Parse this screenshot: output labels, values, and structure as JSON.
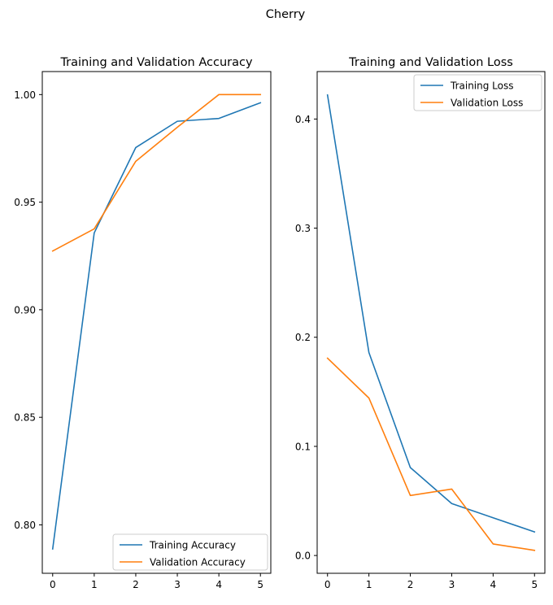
{
  "figure": {
    "suptitle": "Cherry"
  },
  "colors": {
    "training": "#1f77b4",
    "validation": "#ff7f0e",
    "axes": "#000000",
    "background": "#ffffff"
  },
  "chart_data": [
    {
      "type": "line",
      "title": "Training and Validation Accuracy",
      "xlabel": "",
      "ylabel": "",
      "x": [
        0,
        1,
        2,
        3,
        4,
        5
      ],
      "xticks": [
        "0",
        "1",
        "2",
        "3",
        "4",
        "5"
      ],
      "xlim": [
        -0.25,
        5.25
      ],
      "yticks": [
        "0.80",
        "0.85",
        "0.90",
        "0.95",
        "1.00"
      ],
      "ylim": [
        0.7775,
        1.0107
      ],
      "grid": false,
      "legend_position": "lower right",
      "series": [
        {
          "name": "Training Accuracy",
          "color": "#1f77b4",
          "values": [
            0.7888,
            0.9357,
            0.9754,
            0.9876,
            0.9889,
            0.9962
          ]
        },
        {
          "name": "Validation Accuracy",
          "color": "#ff7f0e",
          "values": [
            0.9273,
            0.9376,
            0.969,
            0.9848,
            1.0,
            1.0
          ]
        }
      ]
    },
    {
      "type": "line",
      "title": "Training and Validation Loss",
      "xlabel": "",
      "ylabel": "",
      "x": [
        0,
        1,
        2,
        3,
        4,
        5
      ],
      "xticks": [
        "0",
        "1",
        "2",
        "3",
        "4",
        "5"
      ],
      "xlim": [
        -0.25,
        5.25
      ],
      "yticks": [
        "0.0",
        "0.1",
        "0.2",
        "0.3",
        "0.4"
      ],
      "ylim": [
        -0.0163,
        0.4435
      ],
      "grid": false,
      "legend_position": "upper right",
      "series": [
        {
          "name": "Training Loss",
          "color": "#1f77b4",
          "values": [
            0.422,
            0.186,
            0.0806,
            0.0476,
            0.0346,
            0.0216
          ]
        },
        {
          "name": "Validation Loss",
          "color": "#ff7f0e",
          "values": [
            0.1808,
            0.1443,
            0.055,
            0.0609,
            0.0106,
            0.0047
          ]
        }
      ]
    }
  ]
}
